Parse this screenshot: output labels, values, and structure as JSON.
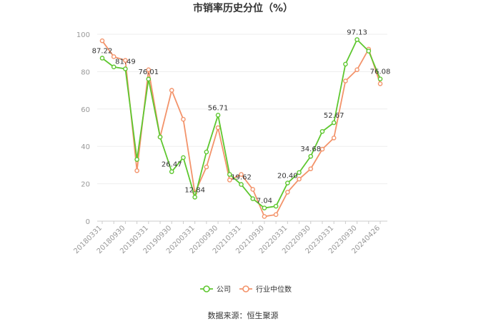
{
  "chart_data": {
    "type": "line",
    "title": "市销率历史分位（%）",
    "ylim": [
      0,
      100
    ],
    "yticks": [
      0,
      20,
      40,
      60,
      80,
      100
    ],
    "grid": true,
    "legend_position": "bottom",
    "x": [
      "20180331",
      "20180630",
      "20180930",
      "20181231",
      "20190331",
      "20190630",
      "20190930",
      "20191231",
      "20200331",
      "20200630",
      "20200930",
      "20201231",
      "20210331",
      "20210630",
      "20210930",
      "20211231",
      "20220331",
      "20220630",
      "20220930",
      "20221231",
      "20230331",
      "20230630",
      "20230930",
      "20231231",
      "20240426"
    ],
    "xtick_labels": [
      "20180331",
      "20180930",
      "20190331",
      "20190930",
      "20200331",
      "20200930",
      "20210331",
      "20210930",
      "20220331",
      "20220930",
      "20230331",
      "20230930",
      "20240426"
    ],
    "series": [
      {
        "name": "公司",
        "color": "#5ec72f",
        "values": [
          87.22,
          82.5,
          81.49,
          33.0,
          76.01,
          45.0,
          26.47,
          34.0,
          12.84,
          37.0,
          56.71,
          25.0,
          19.62,
          12.0,
          7.04,
          8.0,
          20.4,
          26.0,
          34.68,
          48.0,
          52.67,
          84.0,
          97.13,
          91.0,
          76.08
        ],
        "labels": [
          "87.22",
          "",
          "81.49",
          "",
          "76.01",
          "",
          "26.47",
          "",
          "12.84",
          "",
          "56.71",
          "",
          "19.62",
          "",
          "7.04",
          "",
          "20.40",
          "",
          "34.68",
          "",
          "52.67",
          "",
          "97.13",
          "",
          "76.08"
        ]
      },
      {
        "name": "行业中位数",
        "color": "#f3936a",
        "values": [
          96.5,
          88.0,
          86.0,
          27.0,
          81.0,
          45.0,
          70.0,
          54.5,
          15.0,
          29.0,
          50.0,
          22.0,
          25.0,
          17.0,
          2.5,
          3.5,
          15.5,
          22.5,
          28.0,
          38.5,
          44.5,
          75.0,
          81.0,
          92.0,
          73.5
        ]
      }
    ]
  },
  "footer": {
    "source": "数据来源：恒生聚源"
  }
}
